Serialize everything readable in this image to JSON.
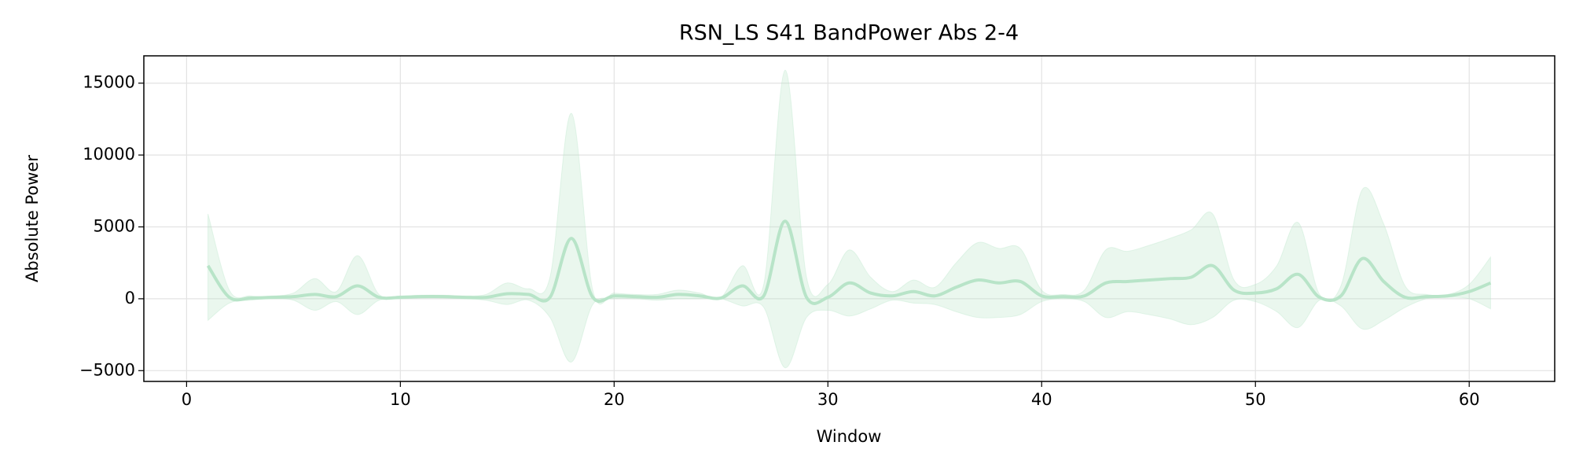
{
  "chart_data": {
    "type": "line",
    "title": "RSN_LS S41 BandPower Abs 2-4",
    "x_label": "Window",
    "y_label": "Absolute Power",
    "x": [
      1,
      2,
      3,
      4,
      5,
      6,
      7,
      8,
      9,
      10,
      11,
      12,
      13,
      14,
      15,
      16,
      17,
      18,
      19,
      20,
      21,
      22,
      23,
      24,
      25,
      26,
      27,
      28,
      29,
      30,
      31,
      32,
      33,
      34,
      35,
      36,
      37,
      38,
      39,
      40,
      41,
      42,
      43,
      44,
      45,
      46,
      47,
      48,
      49,
      50,
      51,
      52,
      53,
      54,
      55,
      56,
      57,
      58,
      59,
      60,
      61
    ],
    "values": [
      2300,
      100,
      50,
      100,
      150,
      300,
      150,
      900,
      100,
      100,
      150,
      150,
      100,
      100,
      350,
      300,
      100,
      4200,
      100,
      200,
      150,
      100,
      300,
      200,
      50,
      900,
      200,
      5400,
      100,
      100,
      1100,
      400,
      200,
      500,
      200,
      800,
      1300,
      1100,
      1200,
      200,
      150,
      200,
      1100,
      1200,
      1300,
      1400,
      1500,
      2300,
      600,
      400,
      700,
      1700,
      100,
      200,
      2800,
      1200,
      100,
      150,
      200,
      500,
      1100
    ],
    "upper": [
      5900,
      600,
      200,
      200,
      400,
      1400,
      500,
      3000,
      300,
      200,
      250,
      250,
      200,
      300,
      1100,
      700,
      1500,
      12900,
      600,
      400,
      300,
      300,
      600,
      400,
      100,
      2300,
      1000,
      15900,
      1500,
      1000,
      3400,
      1500,
      500,
      1300,
      800,
      2500,
      3900,
      3500,
      3500,
      600,
      300,
      600,
      3400,
      3300,
      3700,
      4200,
      4800,
      5900,
      1300,
      1000,
      2300,
      5300,
      300,
      900,
      7600,
      5200,
      900,
      300,
      300,
      1000,
      2900
    ],
    "lower": [
      -1500,
      -300,
      -100,
      0,
      -100,
      -800,
      -200,
      -1100,
      -100,
      0,
      50,
      50,
      0,
      -100,
      -400,
      -100,
      -1300,
      -4400,
      -400,
      0,
      0,
      -100,
      0,
      0,
      0,
      -500,
      -600,
      -4800,
      -1300,
      -800,
      -1200,
      -700,
      -100,
      -300,
      -400,
      -900,
      -1300,
      -1300,
      -1100,
      -200,
      0,
      -200,
      -1300,
      -900,
      -1100,
      -1400,
      -1800,
      -1300,
      -100,
      -200,
      -900,
      -2000,
      -100,
      -500,
      -2100,
      -1500,
      -600,
      0,
      100,
      0,
      -700
    ],
    "color": "#b8e4c8",
    "xlim": [
      -2,
      64
    ],
    "ylim": [
      -5750,
      16900
    ],
    "xticks": [
      0,
      10,
      20,
      30,
      40,
      50,
      60
    ],
    "yticks": [
      {
        "value": -5000,
        "label": "−5000"
      },
      0,
      5000,
      10000,
      15000
    ],
    "grid": true
  }
}
